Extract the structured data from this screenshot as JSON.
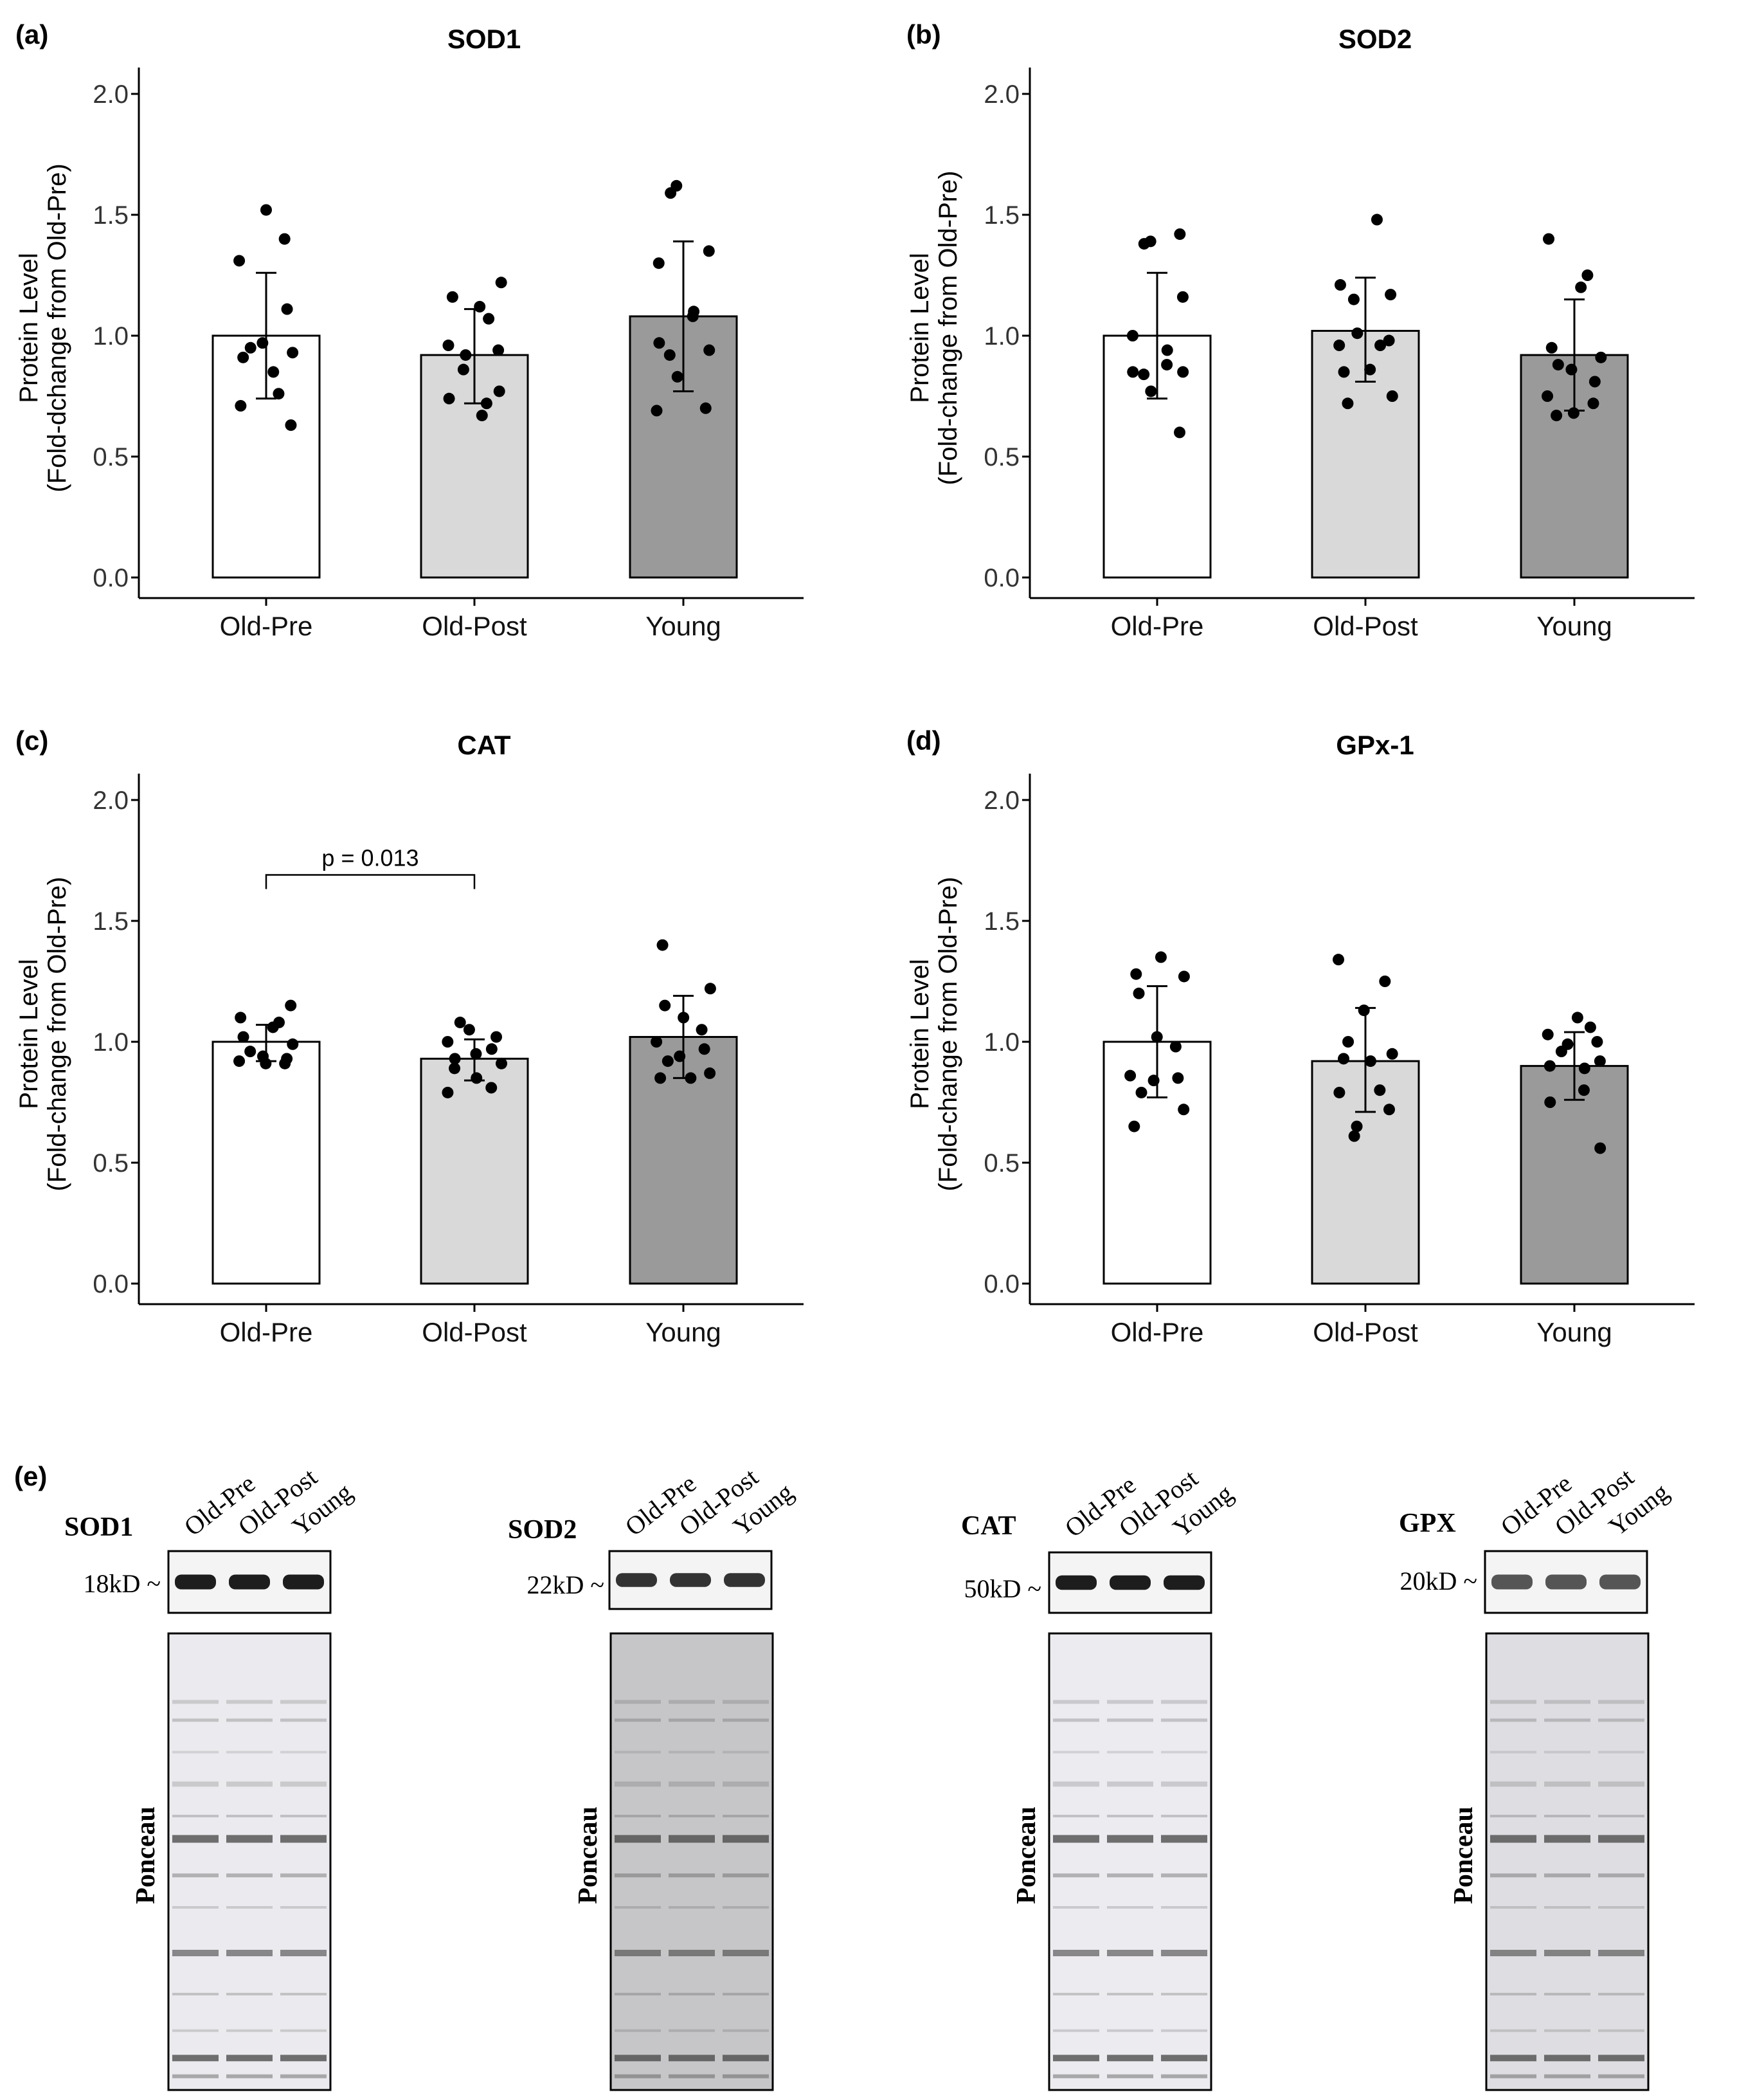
{
  "panels": [
    {
      "letter": "(a)",
      "chart_data": {
        "type": "bar",
        "title": "SOD1",
        "ylabel_line1": "Protein Level",
        "ylabel_line2": "(Fold-dchange from Old-Pre)",
        "categories": [
          "Old-Pre",
          "Old-Post",
          "Young"
        ],
        "values": [
          1.0,
          0.92,
          1.08
        ],
        "error": [
          [
            0.74,
            1.26
          ],
          [
            0.72,
            1.11
          ],
          [
            0.77,
            1.39
          ]
        ],
        "points": [
          [
            1.52,
            1.4,
            1.31,
            1.11,
            0.97,
            0.95,
            0.93,
            0.91,
            0.85,
            0.76,
            0.71,
            0.63
          ],
          [
            1.22,
            1.16,
            1.12,
            1.07,
            0.96,
            0.94,
            0.92,
            0.86,
            0.77,
            0.74,
            0.72,
            0.67
          ],
          [
            1.62,
            1.59,
            1.35,
            1.3,
            1.1,
            1.08,
            0.97,
            0.94,
            0.92,
            0.83,
            0.7,
            0.69
          ]
        ],
        "bar_colors": [
          "#ffffff",
          "#d9d9d9",
          "#9a9a9a"
        ],
        "ylim": [
          0,
          2.0
        ],
        "yticks": [
          "0.0",
          "0.5",
          "1.0",
          "1.5",
          "2.0"
        ],
        "grid": false,
        "annotation": null
      }
    },
    {
      "letter": "(b)",
      "chart_data": {
        "type": "bar",
        "title": "SOD2",
        "ylabel_line1": "Protein Level",
        "ylabel_line2": "(Fold-change from Old-Pre)",
        "categories": [
          "Old-Pre",
          "Old-Post",
          "Young"
        ],
        "values": [
          1.0,
          1.02,
          0.92
        ],
        "error": [
          [
            0.74,
            1.26
          ],
          [
            0.81,
            1.24
          ],
          [
            0.69,
            1.15
          ]
        ],
        "points": [
          [
            1.42,
            1.39,
            1.38,
            1.16,
            1.0,
            0.94,
            0.88,
            0.85,
            0.85,
            0.84,
            0.77,
            0.6
          ],
          [
            1.48,
            1.21,
            1.17,
            1.15,
            1.01,
            0.98,
            0.96,
            0.96,
            0.86,
            0.85,
            0.75,
            0.72
          ],
          [
            1.4,
            1.25,
            1.2,
            0.95,
            0.91,
            0.88,
            0.86,
            0.81,
            0.75,
            0.72,
            0.68,
            0.67
          ]
        ],
        "bar_colors": [
          "#ffffff",
          "#d9d9d9",
          "#9a9a9a"
        ],
        "ylim": [
          0,
          2.0
        ],
        "yticks": [
          "0.0",
          "0.5",
          "1.0",
          "1.5",
          "2.0"
        ],
        "grid": false,
        "annotation": null
      }
    },
    {
      "letter": "(c)",
      "chart_data": {
        "type": "bar",
        "title": "CAT",
        "ylabel_line1": "Protein Level",
        "ylabel_line2": "(Fold-change from Old-Pre)",
        "categories": [
          "Old-Pre",
          "Old-Post",
          "Young"
        ],
        "values": [
          1.0,
          0.93,
          1.02
        ],
        "error": [
          [
            0.92,
            1.07
          ],
          [
            0.84,
            1.01
          ],
          [
            0.85,
            1.19
          ]
        ],
        "points": [
          [
            1.15,
            1.1,
            1.08,
            1.06,
            1.02,
            0.99,
            0.96,
            0.94,
            0.93,
            0.92,
            0.91,
            0.91
          ],
          [
            1.08,
            1.05,
            1.02,
            1.0,
            0.97,
            0.95,
            0.93,
            0.91,
            0.89,
            0.85,
            0.81,
            0.79
          ],
          [
            1.4,
            1.22,
            1.15,
            1.1,
            1.05,
            1.0,
            0.97,
            0.94,
            0.92,
            0.87,
            0.85,
            0.85
          ]
        ],
        "bar_colors": [
          "#ffffff",
          "#d9d9d9",
          "#9a9a9a"
        ],
        "ylim": [
          0,
          2.0
        ],
        "yticks": [
          "0.0",
          "0.5",
          "1.0",
          "1.5",
          "2.0"
        ],
        "grid": false,
        "annotation": {
          "text": "p = 0.013",
          "from": "Old-Pre",
          "to": "Old-Post",
          "level": 1.69
        }
      }
    },
    {
      "letter": "(d)",
      "chart_data": {
        "type": "bar",
        "title": "GPx-1",
        "ylabel_line1": "Protein Level",
        "ylabel_line2": "(Fold-change from Old-Pre)",
        "categories": [
          "Old-Pre",
          "Old-Post",
          "Young"
        ],
        "values": [
          1.0,
          0.92,
          0.9
        ],
        "error": [
          [
            0.77,
            1.23
          ],
          [
            0.71,
            1.14
          ],
          [
            0.76,
            1.04
          ]
        ],
        "points": [
          [
            1.35,
            1.28,
            1.27,
            1.2,
            1.02,
            0.98,
            0.86,
            0.85,
            0.84,
            0.79,
            0.72,
            0.65
          ],
          [
            1.34,
            1.25,
            1.13,
            1.0,
            0.95,
            0.93,
            0.92,
            0.8,
            0.79,
            0.72,
            0.65,
            0.61
          ],
          [
            1.1,
            1.06,
            1.03,
            1.0,
            0.99,
            0.96,
            0.92,
            0.9,
            0.89,
            0.8,
            0.75,
            0.56
          ]
        ],
        "bar_colors": [
          "#ffffff",
          "#d9d9d9",
          "#9a9a9a"
        ],
        "ylim": [
          0,
          2.0
        ],
        "yticks": [
          "0.0",
          "0.5",
          "1.0",
          "1.5",
          "2.0"
        ],
        "grid": false,
        "annotation": null
      }
    }
  ],
  "blots": {
    "letter": "(e)",
    "lane_labels": [
      "Old-Pre",
      "Old-Post",
      "Young"
    ],
    "ponceau_label": "Ponceau",
    "items": [
      {
        "protein": "SOD1",
        "marker": "18kD ~"
      },
      {
        "protein": "SOD2",
        "marker": "22kD ~"
      },
      {
        "protein": "CAT",
        "marker": "50kD ~"
      },
      {
        "protein": "GPX",
        "marker": "20kD ~"
      }
    ]
  }
}
